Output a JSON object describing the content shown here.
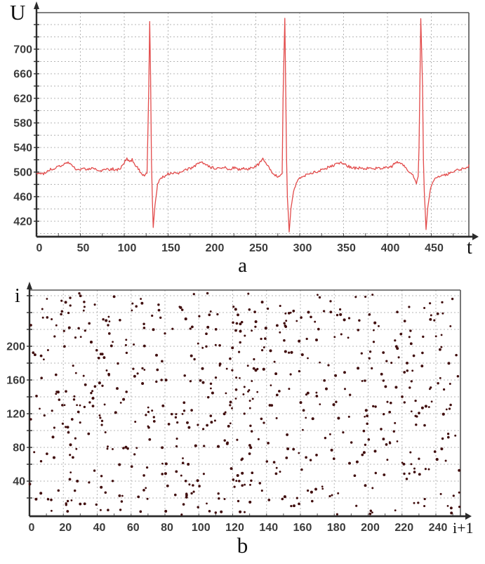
{
  "figure": {
    "background": "#ffffff",
    "caption_a": "a",
    "caption_b": "b"
  },
  "chart_data": [
    {
      "id": "a",
      "type": "line",
      "caption": "a",
      "xlabel": "t",
      "ylabel": "U",
      "x_tick_labels": [
        0,
        50,
        100,
        150,
        200,
        250,
        300,
        350,
        400,
        450
      ],
      "y_tick_labels": [
        420,
        460,
        500,
        540,
        580,
        620,
        660,
        700
      ],
      "x_range": [
        0,
        493
      ],
      "y_range": [
        395,
        759
      ],
      "grid": "dashed, every 20 U vertical-step and every 50 t horizontal-step",
      "line_color": "#e24b4b",
      "axis_color": "#2b2b2b",
      "border_color": "#555555",
      "grid_color": "#b5b5b5",
      "tick_label_color": "#3b3b3b",
      "noise_amplitude": 2.3,
      "noise_seed": 20,
      "description": "ECG-like signal: baseline near U=500 with three sharp QRS spikes (peak ~750, trough ~405) at t ~129, ~283 and ~438",
      "keypoints": [
        [
          0,
          497
        ],
        [
          4,
          499
        ],
        [
          8,
          496
        ],
        [
          12,
          502
        ],
        [
          16,
          504
        ],
        [
          20,
          506
        ],
        [
          25,
          508
        ],
        [
          30,
          512
        ],
        [
          34,
          517
        ],
        [
          38,
          513
        ],
        [
          42,
          508
        ],
        [
          47,
          504
        ],
        [
          52,
          506
        ],
        [
          57,
          503
        ],
        [
          62,
          507
        ],
        [
          67,
          504
        ],
        [
          72,
          500
        ],
        [
          77,
          506
        ],
        [
          82,
          503
        ],
        [
          87,
          505
        ],
        [
          92,
          503
        ],
        [
          96,
          507
        ],
        [
          100,
          515
        ],
        [
          103,
          522
        ],
        [
          106,
          518
        ],
        [
          109,
          520
        ],
        [
          112,
          513
        ],
        [
          116,
          506
        ],
        [
          120,
          497
        ],
        [
          124,
          494
        ],
        [
          126,
          499
        ],
        [
          128,
          640
        ],
        [
          129,
          745
        ],
        [
          130,
          660
        ],
        [
          131,
          520
        ],
        [
          132,
          458
        ],
        [
          133,
          410
        ],
        [
          135,
          446
        ],
        [
          138,
          479
        ],
        [
          141,
          489
        ],
        [
          145,
          493
        ],
        [
          150,
          497
        ],
        [
          155,
          499
        ],
        [
          160,
          497
        ],
        [
          165,
          500
        ],
        [
          170,
          503
        ],
        [
          175,
          506
        ],
        [
          180,
          510
        ],
        [
          185,
          514
        ],
        [
          188,
          516
        ],
        [
          192,
          512
        ],
        [
          196,
          509
        ],
        [
          200,
          507
        ],
        [
          205,
          506
        ],
        [
          210,
          505
        ],
        [
          215,
          507
        ],
        [
          220,
          505
        ],
        [
          225,
          507
        ],
        [
          230,
          504
        ],
        [
          235,
          506
        ],
        [
          240,
          505
        ],
        [
          245,
          507
        ],
        [
          250,
          509
        ],
        [
          254,
          514
        ],
        [
          258,
          521
        ],
        [
          262,
          514
        ],
        [
          266,
          504
        ],
        [
          270,
          497
        ],
        [
          274,
          494
        ],
        [
          278,
          493
        ],
        [
          280,
          499
        ],
        [
          281,
          620
        ],
        [
          283,
          750
        ],
        [
          284,
          640
        ],
        [
          285,
          520
        ],
        [
          286,
          458
        ],
        [
          288,
          403
        ],
        [
          290,
          441
        ],
        [
          293,
          469
        ],
        [
          296,
          483
        ],
        [
          300,
          489
        ],
        [
          305,
          494
        ],
        [
          310,
          496
        ],
        [
          315,
          499
        ],
        [
          320,
          501
        ],
        [
          325,
          503
        ],
        [
          330,
          506
        ],
        [
          335,
          510
        ],
        [
          340,
          512
        ],
        [
          345,
          515
        ],
        [
          350,
          514
        ],
        [
          355,
          510
        ],
        [
          360,
          507
        ],
        [
          365,
          506
        ],
        [
          370,
          507
        ],
        [
          375,
          505
        ],
        [
          380,
          507
        ],
        [
          385,
          506
        ],
        [
          390,
          507
        ],
        [
          395,
          506
        ],
        [
          400,
          507
        ],
        [
          405,
          509
        ],
        [
          408,
          514
        ],
        [
          412,
          516
        ],
        [
          416,
          514
        ],
        [
          420,
          509
        ],
        [
          424,
          501
        ],
        [
          428,
          497
        ],
        [
          431,
          490
        ],
        [
          433,
          483
        ],
        [
          435,
          494
        ],
        [
          436,
          540
        ],
        [
          438,
          750
        ],
        [
          440,
          640
        ],
        [
          441,
          520
        ],
        [
          442,
          468
        ],
        [
          444,
          406
        ],
        [
          446,
          443
        ],
        [
          449,
          472
        ],
        [
          452,
          485
        ],
        [
          456,
          490
        ],
        [
          460,
          493
        ],
        [
          464,
          495
        ],
        [
          468,
          497
        ],
        [
          472,
          499
        ],
        [
          476,
          500
        ],
        [
          480,
          503
        ],
        [
          484,
          504
        ],
        [
          488,
          506
        ],
        [
          492,
          509
        ],
        [
          493,
          510
        ]
      ]
    },
    {
      "id": "b",
      "type": "scatter",
      "caption": "b",
      "xlabel": "i+1",
      "ylabel": "i",
      "x_tick_labels": [
        0,
        20,
        40,
        60,
        80,
        100,
        120,
        140,
        160,
        180,
        200,
        220,
        240
      ],
      "y_tick_labels": [
        40,
        80,
        120,
        160,
        200
      ],
      "x_range": [
        0,
        254
      ],
      "y_range": [
        0,
        264
      ],
      "grid": "dashed, every 20 units both axes",
      "n_points": 650,
      "seed": 987654,
      "dot_color": "#400d0d",
      "dot_radius": 1.7,
      "axis_color": "#2b2b2b",
      "border_color": "#555555",
      "grid_color": "#b5b5b5",
      "tick_label_color": "#3b3b3b",
      "description": "Uniformly scattered dark-red points (recurrence-style map of successive intervals i vs i+1) filling the whole 0-255 square"
    }
  ]
}
